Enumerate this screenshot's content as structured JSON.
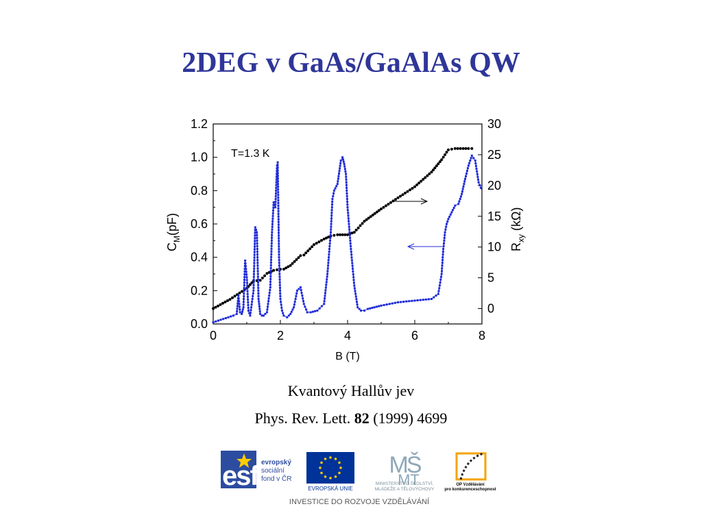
{
  "slide": {
    "title": "2DEG v GaAs/GaAlAs QW",
    "caption_line1": "Kvantový Hallův jev",
    "caption_line2_prefix": "Phys. Rev. Lett.",
    "caption_line2_volume": "82",
    "caption_line2_suffix": "(1999) 4699"
  },
  "chart_data": {
    "type": "line",
    "annotation": "T=1.3 K",
    "xlabel": "B (T)",
    "ylabel_left_main": "C",
    "ylabel_left_sub": "M",
    "ylabel_left_unit": "(pF)",
    "ylabel_right_main": "R",
    "ylabel_right_sub": "xy",
    "ylabel_right_unit": "(kΩ)",
    "xlim": [
      0,
      8
    ],
    "ylim_left": [
      0,
      1.2
    ],
    "ylim_right": [
      -2.5,
      30
    ],
    "x_ticks": [
      "0",
      "2",
      "4",
      "6",
      "8"
    ],
    "y_ticks_left": [
      "0.0",
      "0.2",
      "0.4",
      "0.6",
      "0.8",
      "1.0",
      "1.2"
    ],
    "y_ticks_right": [
      "0",
      "5",
      "10",
      "15",
      "20",
      "25",
      "30"
    ],
    "series": [
      {
        "axis": "right",
        "color": "#000000",
        "x": [
          0,
          0.5,
          1.0,
          1.2,
          1.4,
          1.6,
          1.8,
          2.0,
          2.1,
          2.3,
          2.6,
          2.7,
          3.0,
          3.3,
          3.5,
          3.7,
          4.0,
          4.2,
          4.5,
          5.0,
          5.5,
          6.0,
          6.5,
          6.8,
          7.0,
          7.2,
          7.6,
          7.8
        ],
        "y": [
          0.0,
          1.5,
          3.3,
          4.5,
          4.6,
          5.7,
          6.2,
          6.4,
          6.4,
          7.0,
          8.6,
          8.7,
          10.4,
          11.3,
          11.8,
          12.0,
          12.0,
          12.4,
          14.2,
          16.2,
          18.0,
          19.8,
          22.2,
          24.2,
          25.8,
          26.0,
          26.0,
          26.0
        ]
      },
      {
        "axis": "left",
        "color": "#1f2bd8",
        "x": [
          0,
          0.3,
          0.6,
          0.7,
          0.75,
          0.8,
          0.85,
          0.9,
          0.95,
          1.0,
          1.05,
          1.1,
          1.2,
          1.25,
          1.3,
          1.35,
          1.4,
          1.45,
          1.5,
          1.6,
          1.7,
          1.75,
          1.8,
          1.85,
          1.9,
          1.92,
          1.96,
          2.0,
          2.05,
          2.1,
          2.2,
          2.3,
          2.4,
          2.5,
          2.6,
          2.7,
          2.8,
          2.9,
          3.1,
          3.3,
          3.4,
          3.5,
          3.55,
          3.6,
          3.7,
          3.8,
          3.85,
          3.9,
          3.95,
          4.0,
          4.1,
          4.2,
          4.3,
          4.4,
          4.5,
          4.6,
          4.8,
          5.0,
          5.5,
          6.0,
          6.5,
          6.7,
          6.8,
          6.85,
          6.9,
          6.95,
          7.0,
          7.1,
          7.2,
          7.3,
          7.4,
          7.5,
          7.6,
          7.7,
          7.8,
          7.9,
          8.0
        ],
        "y": [
          0.01,
          0.03,
          0.05,
          0.06,
          0.17,
          0.07,
          0.06,
          0.1,
          0.38,
          0.28,
          0.08,
          0.05,
          0.2,
          0.58,
          0.55,
          0.15,
          0.06,
          0.05,
          0.05,
          0.07,
          0.22,
          0.55,
          0.73,
          0.7,
          0.95,
          0.97,
          0.4,
          0.15,
          0.08,
          0.05,
          0.04,
          0.06,
          0.1,
          0.2,
          0.22,
          0.12,
          0.07,
          0.07,
          0.08,
          0.12,
          0.3,
          0.55,
          0.75,
          0.8,
          0.84,
          0.98,
          1.0,
          0.96,
          0.9,
          0.7,
          0.45,
          0.23,
          0.1,
          0.08,
          0.08,
          0.09,
          0.1,
          0.11,
          0.13,
          0.14,
          0.15,
          0.18,
          0.3,
          0.45,
          0.55,
          0.6,
          0.63,
          0.67,
          0.71,
          0.72,
          0.78,
          0.87,
          0.95,
          1.01,
          0.98,
          0.85,
          0.8
        ]
      }
    ]
  },
  "logos": {
    "esf_line1": "evropský",
    "esf_line2": "sociální",
    "esf_line3": "fond v ČR",
    "eu_label": "EVROPSKÁ UNIE",
    "msmt_line1": "MINISTERSTVO ŠKOLSTVÍ,",
    "msmt_line2": "MLÁDEŽE A TĚLOVÝCHOVY",
    "op_line1": "OP Vzdělávání",
    "op_line2": "pro konkurenceschopnost",
    "investice": "INVESTICE DO ROZVOJE VZDĚLÁVÁNÍ"
  },
  "colors": {
    "title": "#2f3699",
    "series_black": "#000000",
    "series_blue": "#1f2bd8",
    "esf_blue": "#2c4ca0",
    "eu_blue": "#003399",
    "eu_star": "#ffcc00"
  }
}
